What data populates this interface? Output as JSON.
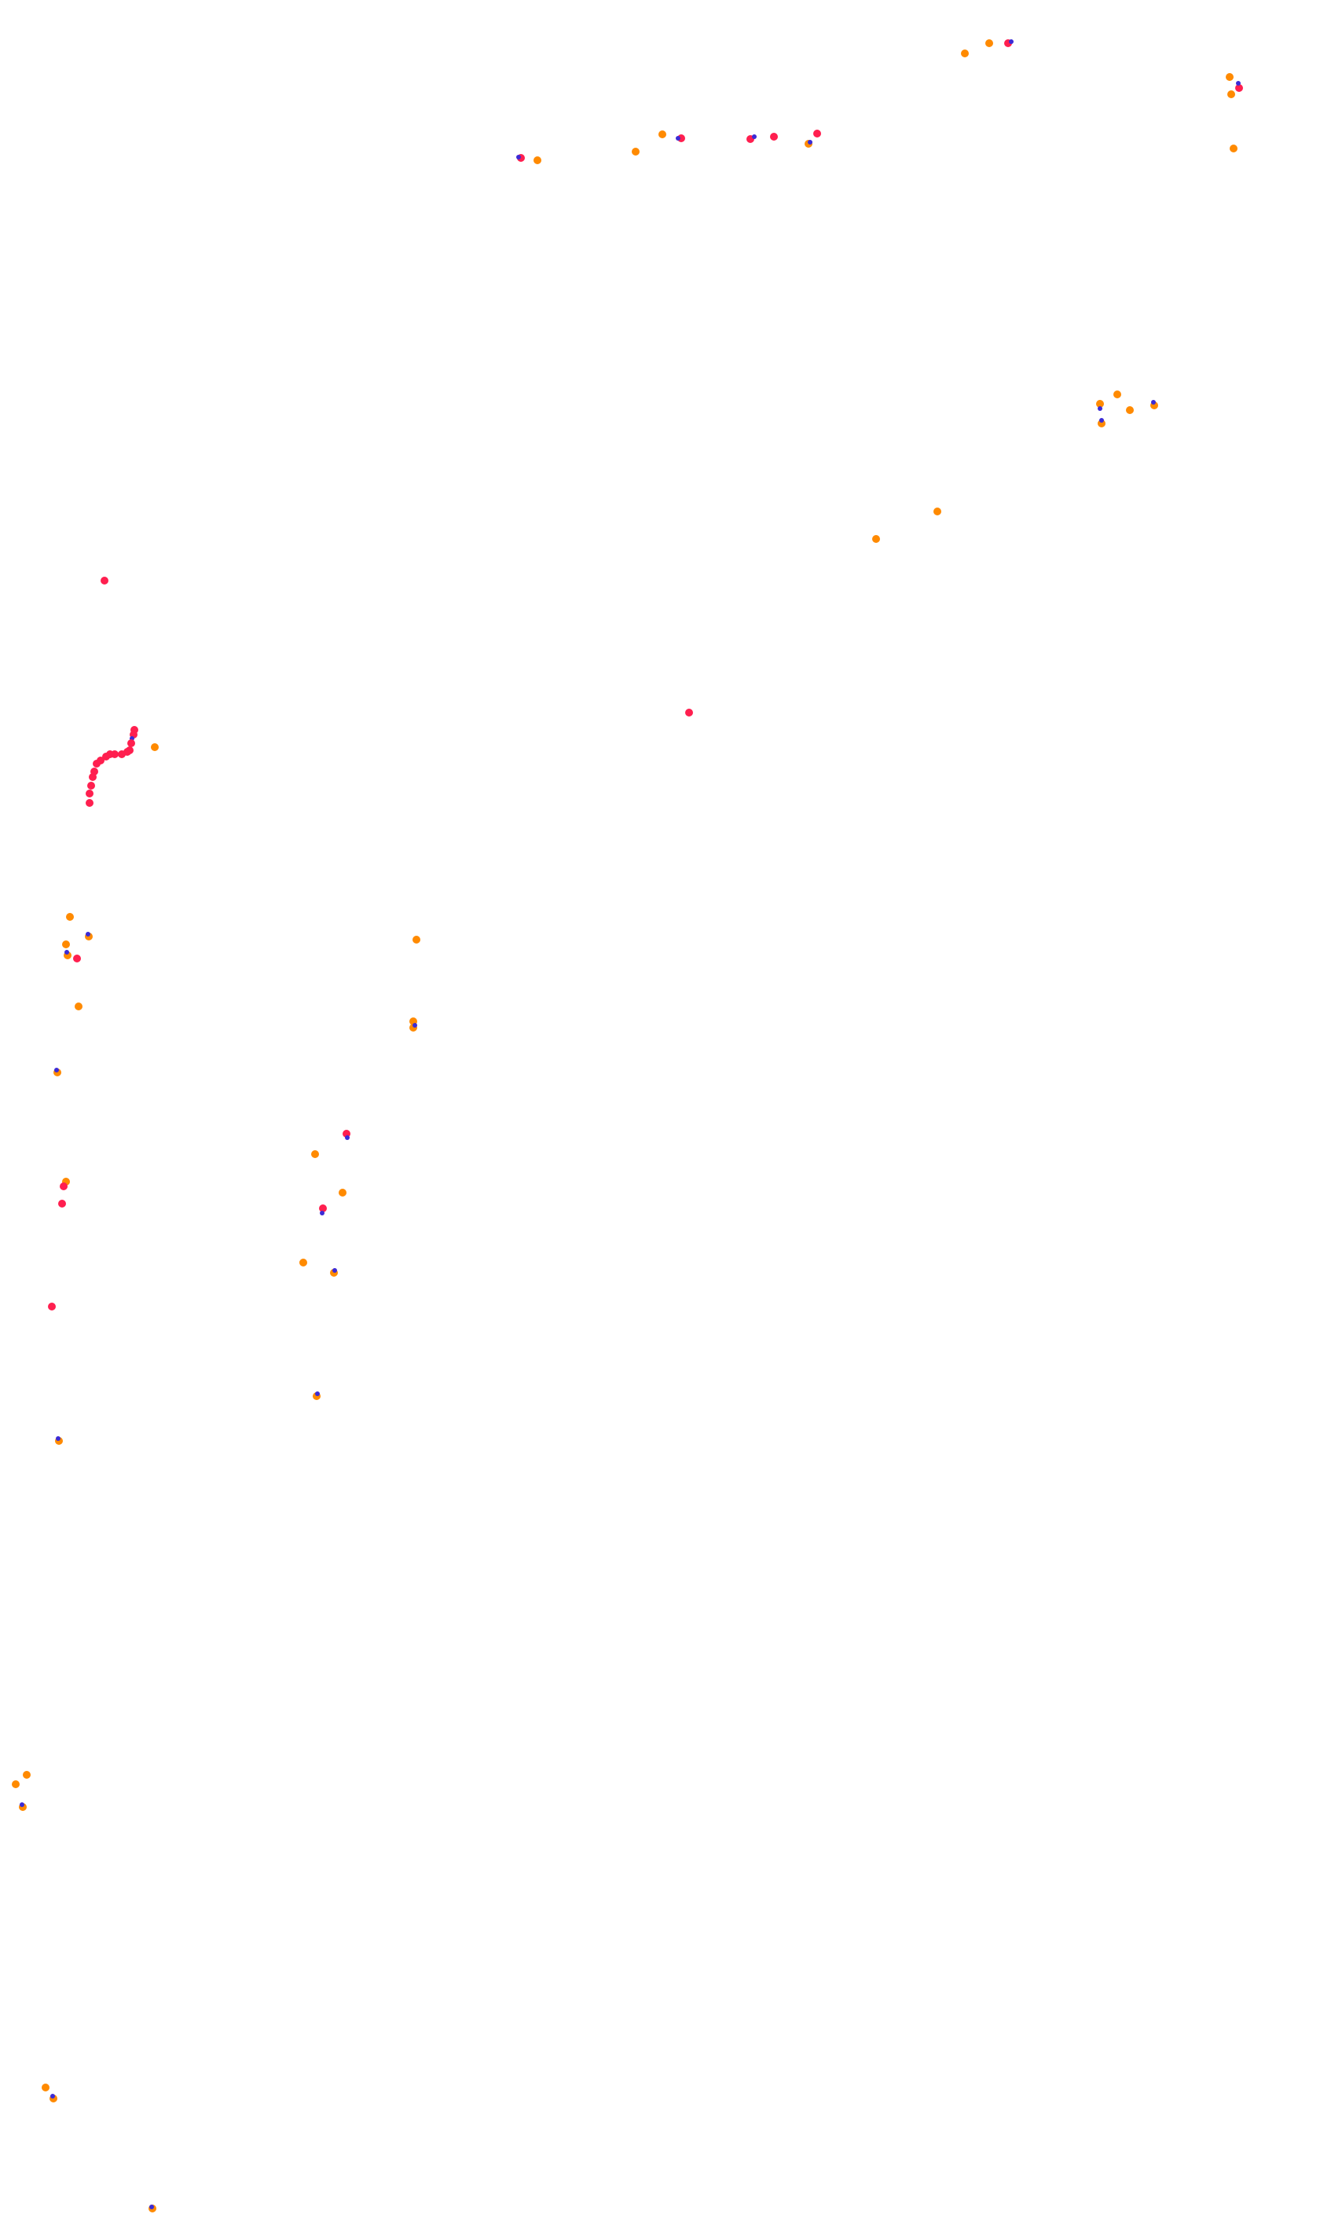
{
  "colors": {
    "background": "#ffffff",
    "orange": "#ff8a00",
    "red": "#ff1f4f",
    "blue": "#3b2bd6"
  }
}
